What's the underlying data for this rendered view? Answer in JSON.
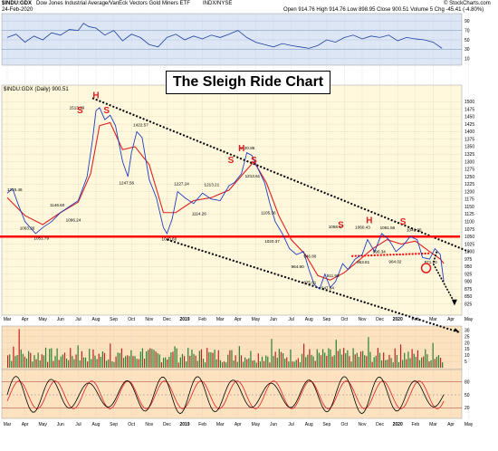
{
  "header": {
    "symbol": "$INDU:GDX",
    "description": "Dow Jones Industrial Average/VanEck Vectors Gold Miners ETF",
    "exchange": "INDX/NYSE",
    "copyright": "© StockCharts.com",
    "date": "24-Feb-2020",
    "quote": "Open 914.76  High 914.76  Low 898.95  Close 900.51  Volume 5  Chg -45.41 (-4.80%)",
    "indicator_change": "▼"
  },
  "main_panel_label": "$INDU:GDX (Daily) 900.51",
  "main_title": "The Sleigh Ride Chart",
  "colors": {
    "panel_bg": "#fff8dc",
    "price": "#1f3fbf",
    "ma": "#e02020",
    "support": "#ff0000",
    "channel": "#000000",
    "top_panel_bg": "#dce6f5",
    "bottom_panel_bg": "#fde2c0"
  },
  "chart_data": {
    "type": "line",
    "x_months": [
      "Mar",
      "Apr",
      "May",
      "Jun",
      "Jul",
      "Aug",
      "Sep",
      "Oct",
      "Nov",
      "Dec",
      "2019",
      "Feb",
      "Mar",
      "Apr",
      "May",
      "Jun",
      "Jul",
      "Aug",
      "Sep",
      "Oct",
      "Nov",
      "Dec",
      "2020",
      "Feb",
      "Mar",
      "Apr",
      "May"
    ],
    "ylim": [
      800,
      1525
    ],
    "y_ticks": [
      825,
      850,
      875,
      900,
      925,
      950,
      975,
      1000,
      1025,
      1050,
      1075,
      1100,
      1125,
      1150,
      1175,
      1200,
      1225,
      1250,
      1275,
      1300,
      1325,
      1350,
      1375,
      1400,
      1425,
      1450,
      1475,
      1500
    ],
    "price_series": [
      [
        0,
        1195
      ],
      [
        0.3,
        1210
      ],
      [
        0.6,
        1160
      ],
      [
        1,
        1100
      ],
      [
        1.3,
        1080
      ],
      [
        1.6,
        1060
      ],
      [
        2,
        1080
      ],
      [
        2.5,
        1100
      ],
      [
        3,
        1130
      ],
      [
        3.5,
        1150
      ],
      [
        4,
        1170
      ],
      [
        4.5,
        1250
      ],
      [
        4.8,
        1370
      ],
      [
        5.0,
        1470
      ],
      [
        5.2,
        1480
      ],
      [
        5.5,
        1440
      ],
      [
        5.8,
        1455
      ],
      [
        6.1,
        1420
      ],
      [
        6.5,
        1300
      ],
      [
        6.8,
        1250
      ],
      [
        7.0,
        1330
      ],
      [
        7.3,
        1400
      ],
      [
        7.6,
        1380
      ],
      [
        8.0,
        1240
      ],
      [
        8.4,
        1180
      ],
      [
        8.8,
        1080
      ],
      [
        9.0,
        1060
      ],
      [
        9.3,
        1110
      ],
      [
        9.6,
        1200
      ],
      [
        10.0,
        1180
      ],
      [
        10.5,
        1160
      ],
      [
        11.0,
        1195
      ],
      [
        11.5,
        1175
      ],
      [
        12.0,
        1170
      ],
      [
        12.5,
        1220
      ],
      [
        12.8,
        1230
      ],
      [
        13.2,
        1260
      ],
      [
        13.5,
        1330
      ],
      [
        13.8,
        1320
      ],
      [
        14.1,
        1280
      ],
      [
        14.5,
        1230
      ],
      [
        14.8,
        1160
      ],
      [
        15.1,
        1100
      ],
      [
        15.5,
        1060
      ],
      [
        15.9,
        1010
      ],
      [
        16.3,
        990
      ],
      [
        16.7,
        1000
      ],
      [
        17.0,
        940
      ],
      [
        17.3,
        890
      ],
      [
        17.6,
        875
      ],
      [
        17.9,
        925
      ],
      [
        18.2,
        880
      ],
      [
        18.5,
        900
      ],
      [
        18.9,
        960
      ],
      [
        19.2,
        940
      ],
      [
        19.6,
        975
      ],
      [
        20.0,
        990
      ],
      [
        20.3,
        1040
      ],
      [
        20.7,
        1000
      ],
      [
        21.1,
        1060
      ],
      [
        21.5,
        1040
      ],
      [
        21.9,
        1000
      ],
      [
        22.3,
        1020
      ],
      [
        22.7,
        1050
      ],
      [
        23.1,
        1040
      ],
      [
        23.4,
        980
      ],
      [
        23.8,
        975
      ],
      [
        24.1,
        1010
      ],
      [
        24.4,
        990
      ],
      [
        24.6,
        900
      ]
    ],
    "ma_series": [
      [
        0,
        1180
      ],
      [
        1,
        1120
      ],
      [
        2,
        1090
      ],
      [
        3,
        1130
      ],
      [
        4,
        1165
      ],
      [
        4.7,
        1260
      ],
      [
        5.2,
        1420
      ],
      [
        5.8,
        1430
      ],
      [
        6.5,
        1340
      ],
      [
        7.2,
        1350
      ],
      [
        8.0,
        1290
      ],
      [
        8.8,
        1130
      ],
      [
        9.5,
        1130
      ],
      [
        10.5,
        1170
      ],
      [
        11.5,
        1180
      ],
      [
        12.5,
        1205
      ],
      [
        13.3,
        1260
      ],
      [
        13.9,
        1300
      ],
      [
        14.6,
        1230
      ],
      [
        15.3,
        1120
      ],
      [
        16.0,
        1040
      ],
      [
        16.8,
        990
      ],
      [
        17.5,
        920
      ],
      [
        18.2,
        905
      ],
      [
        19.0,
        930
      ],
      [
        19.8,
        970
      ],
      [
        20.6,
        1010
      ],
      [
        21.4,
        1040
      ],
      [
        22.2,
        1025
      ],
      [
        23.0,
        1035
      ],
      [
        23.8,
        1000
      ],
      [
        24.4,
        975
      ],
      [
        24.6,
        960
      ]
    ],
    "labels": [
      {
        "x": 3.5,
        "y": 1475,
        "text": "1513.29"
      },
      {
        "x": 7.1,
        "y": 1418,
        "text": "1422.57"
      },
      {
        "x": 0.0,
        "y": 1202,
        "text": "1215.46"
      },
      {
        "x": 2.4,
        "y": 1150,
        "text": "1146.60"
      },
      {
        "x": 6.3,
        "y": 1225,
        "text": "1247.56"
      },
      {
        "x": 9.4,
        "y": 1222,
        "text": "1227.24"
      },
      {
        "x": 11.1,
        "y": 1218,
        "text": "1213.21"
      },
      {
        "x": 10.4,
        "y": 1122,
        "text": "1114.26"
      },
      {
        "x": 13.1,
        "y": 1340,
        "text": "1320.86"
      },
      {
        "x": 13.4,
        "y": 1247,
        "text": "1213.61"
      },
      {
        "x": 14.3,
        "y": 1124,
        "text": "1105.36"
      },
      {
        "x": 0.7,
        "y": 1074,
        "text": "1063.26"
      },
      {
        "x": 1.5,
        "y": 1040,
        "text": "1051.79"
      },
      {
        "x": 3.3,
        "y": 1100,
        "text": "1096.24"
      },
      {
        "x": 8.7,
        "y": 1037,
        "text": "1040.60"
      },
      {
        "x": 14.5,
        "y": 1030,
        "text": "1020.37"
      },
      {
        "x": 16.0,
        "y": 945,
        "text": "964.90"
      },
      {
        "x": 16.7,
        "y": 980,
        "text": "946.80"
      },
      {
        "x": 16.7,
        "y": 892,
        "text": "875.61"
      },
      {
        "x": 17.7,
        "y": 874,
        "text": "947.64"
      },
      {
        "x": 18.0,
        "y": 915,
        "text": "911.96"
      },
      {
        "x": 18.1,
        "y": 1078,
        "text": "1058.17"
      },
      {
        "x": 19.6,
        "y": 1077,
        "text": "1060.43"
      },
      {
        "x": 21.0,
        "y": 1075,
        "text": "1061.56"
      },
      {
        "x": 22.5,
        "y": 1067,
        "text": "1041.95"
      },
      {
        "x": 20.6,
        "y": 995,
        "text": "990.34"
      },
      {
        "x": 21.5,
        "y": 961,
        "text": "964.02"
      },
      {
        "x": 19.7,
        "y": 960,
        "text": "963.81"
      },
      {
        "x": 23.5,
        "y": 960,
        "text": "971.70"
      }
    ],
    "pattern_labels": [
      {
        "x": 5.0,
        "y": 1512,
        "text": "H"
      },
      {
        "x": 4.1,
        "y": 1462,
        "text": "S"
      },
      {
        "x": 5.6,
        "y": 1462,
        "text": "S"
      },
      {
        "x": 13.2,
        "y": 1335,
        "text": "H"
      },
      {
        "x": 12.6,
        "y": 1295,
        "text": "S"
      },
      {
        "x": 13.9,
        "y": 1295,
        "text": "S"
      },
      {
        "x": 18.8,
        "y": 1080,
        "text": "S"
      },
      {
        "x": 20.4,
        "y": 1095,
        "text": "H"
      },
      {
        "x": 22.3,
        "y": 1090,
        "text": "S"
      }
    ],
    "support_level": 1050,
    "neckline": [
      [
        19.4,
        985
      ],
      [
        23.8,
        994
      ]
    ],
    "channel_upper": [
      [
        4.8,
        1512
      ],
      [
        26.0,
        1000
      ]
    ],
    "channel_lower": [
      [
        9.0,
        1040
      ],
      [
        25.5,
        730
      ]
    ],
    "rsi_series": [
      [
        0,
        55
      ],
      [
        0.5,
        62
      ],
      [
        1,
        45
      ],
      [
        1.5,
        58
      ],
      [
        2,
        50
      ],
      [
        2.5,
        65
      ],
      [
        3,
        60
      ],
      [
        3.5,
        72
      ],
      [
        4,
        70
      ],
      [
        4.3,
        85
      ],
      [
        4.6,
        78
      ],
      [
        5.0,
        75
      ],
      [
        5.5,
        60
      ],
      [
        6,
        70
      ],
      [
        6.5,
        48
      ],
      [
        7,
        62
      ],
      [
        7.5,
        55
      ],
      [
        8,
        40
      ],
      [
        8.5,
        35
      ],
      [
        9,
        55
      ],
      [
        9.5,
        62
      ],
      [
        10,
        50
      ],
      [
        10.5,
        58
      ],
      [
        11,
        52
      ],
      [
        11.5,
        60
      ],
      [
        12,
        55
      ],
      [
        12.5,
        62
      ],
      [
        13,
        70
      ],
      [
        13.5,
        55
      ],
      [
        14,
        45
      ],
      [
        14.5,
        40
      ],
      [
        15,
        35
      ],
      [
        15.5,
        42
      ],
      [
        16,
        38
      ],
      [
        16.5,
        35
      ],
      [
        17,
        32
      ],
      [
        17.5,
        38
      ],
      [
        18,
        50
      ],
      [
        18.5,
        45
      ],
      [
        19,
        55
      ],
      [
        19.5,
        60
      ],
      [
        20,
        52
      ],
      [
        20.5,
        58
      ],
      [
        21,
        55
      ],
      [
        21.5,
        60
      ],
      [
        22,
        48
      ],
      [
        22.5,
        55
      ],
      [
        23,
        52
      ],
      [
        23.5,
        50
      ],
      [
        24,
        45
      ],
      [
        24.5,
        32
      ]
    ],
    "rsi_ticks": [
      10,
      30,
      50,
      70,
      90
    ],
    "volume_ticks": [
      5,
      10,
      15,
      20,
      25,
      30
    ],
    "stoch_ticks": [
      20,
      50,
      80
    ],
    "stoch_period_count": 24
  }
}
